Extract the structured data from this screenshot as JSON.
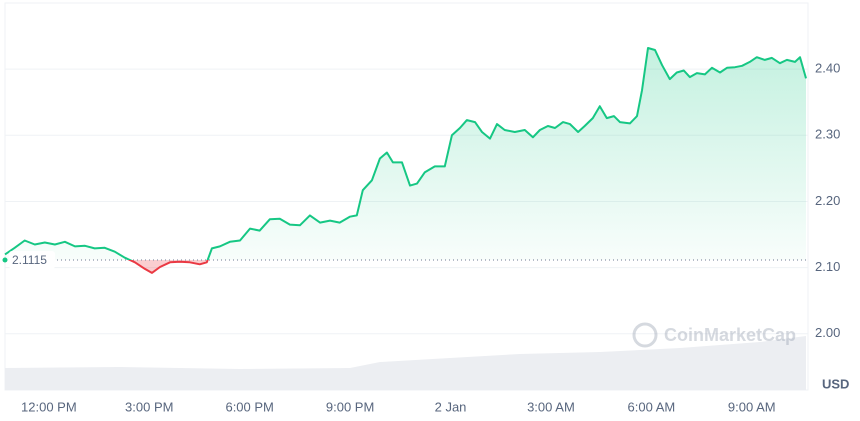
{
  "chart_data": {
    "type": "line",
    "x": [
      10.69,
      10.98,
      11.28,
      11.58,
      11.88,
      12.18,
      12.48,
      12.78,
      13.08,
      13.37,
      13.67,
      13.97,
      14.27,
      14.57,
      14.87,
      15.08,
      15.32,
      15.62,
      15.91,
      16.21,
      16.51,
      16.72,
      16.87,
      17.11,
      17.41,
      17.71,
      18.01,
      18.3,
      18.6,
      18.9,
      19.2,
      19.5,
      19.8,
      20.1,
      20.4,
      20.69,
      20.99,
      21.2,
      21.38,
      21.65,
      21.89,
      22.1,
      22.28,
      22.55,
      22.79,
      23.0,
      23.23,
      23.53,
      23.83,
      24.04,
      24.28,
      24.49,
      24.73,
      24.94,
      25.18,
      25.39,
      25.62,
      25.92,
      26.22,
      26.46,
      26.67,
      26.91,
      27.12,
      27.36,
      27.57,
      27.81,
      28.01,
      28.25,
      28.46,
      28.67,
      28.88,
      29.06,
      29.36,
      29.57,
      29.72,
      29.9,
      30.11,
      30.32,
      30.55,
      30.76,
      30.97,
      31.15,
      31.36,
      31.6,
      31.81,
      32.05,
      32.26,
      32.5,
      32.71,
      32.94,
      33.15,
      33.39,
      33.6,
      33.84,
      34.05,
      34.29,
      34.44,
      34.62
    ],
    "values": [
      2.12,
      2.13,
      2.141,
      2.135,
      2.138,
      2.135,
      2.139,
      2.132,
      2.133,
      2.129,
      2.13,
      2.124,
      2.115,
      2.108,
      2.098,
      2.092,
      2.101,
      2.108,
      2.109,
      2.108,
      2.105,
      2.108,
      2.129,
      2.132,
      2.139,
      2.141,
      2.159,
      2.156,
      2.173,
      2.174,
      2.165,
      2.164,
      2.179,
      2.168,
      2.171,
      2.168,
      2.177,
      2.179,
      2.217,
      2.232,
      2.265,
      2.274,
      2.259,
      2.259,
      2.224,
      2.227,
      2.244,
      2.253,
      2.253,
      2.3,
      2.311,
      2.323,
      2.32,
      2.305,
      2.295,
      2.317,
      2.308,
      2.305,
      2.308,
      2.297,
      2.308,
      2.314,
      2.311,
      2.32,
      2.317,
      2.305,
      2.314,
      2.326,
      2.344,
      2.326,
      2.329,
      2.32,
      2.318,
      2.329,
      2.368,
      2.432,
      2.429,
      2.406,
      2.385,
      2.395,
      2.398,
      2.388,
      2.394,
      2.392,
      2.402,
      2.395,
      2.402,
      2.403,
      2.405,
      2.411,
      2.418,
      2.414,
      2.417,
      2.409,
      2.414,
      2.411,
      2.418,
      2.386
    ],
    "color": "#16c784",
    "down_color": "#ea3943",
    "reference_value": 2.1115,
    "xlim": [
      10.69,
      34.62
    ],
    "xticks": [
      {
        "value": 12,
        "label": "12:00 PM"
      },
      {
        "value": 15,
        "label": "3:00 PM"
      },
      {
        "value": 18,
        "label": "6:00 PM"
      },
      {
        "value": 21,
        "label": "9:00 PM"
      },
      {
        "value": 24,
        "label": "2 Jan"
      },
      {
        "value": 27,
        "label": "3:00 AM"
      },
      {
        "value": 30,
        "label": "6:00 AM"
      },
      {
        "value": 33,
        "label": "9:00 AM"
      }
    ],
    "ylim": [
      1.915,
      2.5
    ],
    "yticks": [
      {
        "value": 2,
        "label": "2.00"
      },
      {
        "value": 2.1,
        "label": "2.10"
      },
      {
        "value": 2.2,
        "label": "2.20"
      },
      {
        "value": 2.3,
        "label": "2.30"
      },
      {
        "value": 2.4,
        "label": "2.40"
      }
    ],
    "ylabel": "USD",
    "watermark": "CoinMarketCap",
    "grid": true
  }
}
